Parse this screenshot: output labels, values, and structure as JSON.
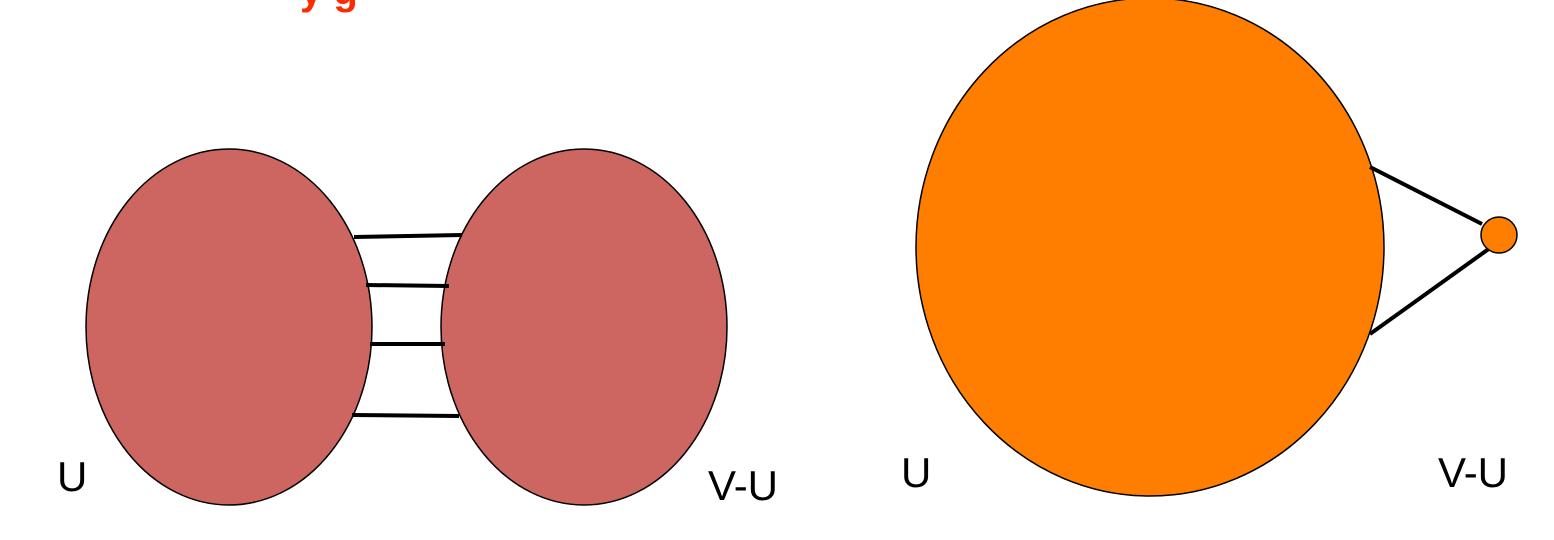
{
  "colors": {
    "left_diagram_fill": "#CD6661",
    "right_diagram_fill": "#FF7E00",
    "title_color": "#FF2A00",
    "edge_color": "#000000"
  },
  "title_fragment": "y g",
  "left_diagram": {
    "label_u": "U",
    "label_v_minus_u": "V-U",
    "crossing_edge_count": 4
  },
  "right_diagram": {
    "label_u": "U",
    "label_v_minus_u": "V-U",
    "crossing_edge_count": 2
  }
}
